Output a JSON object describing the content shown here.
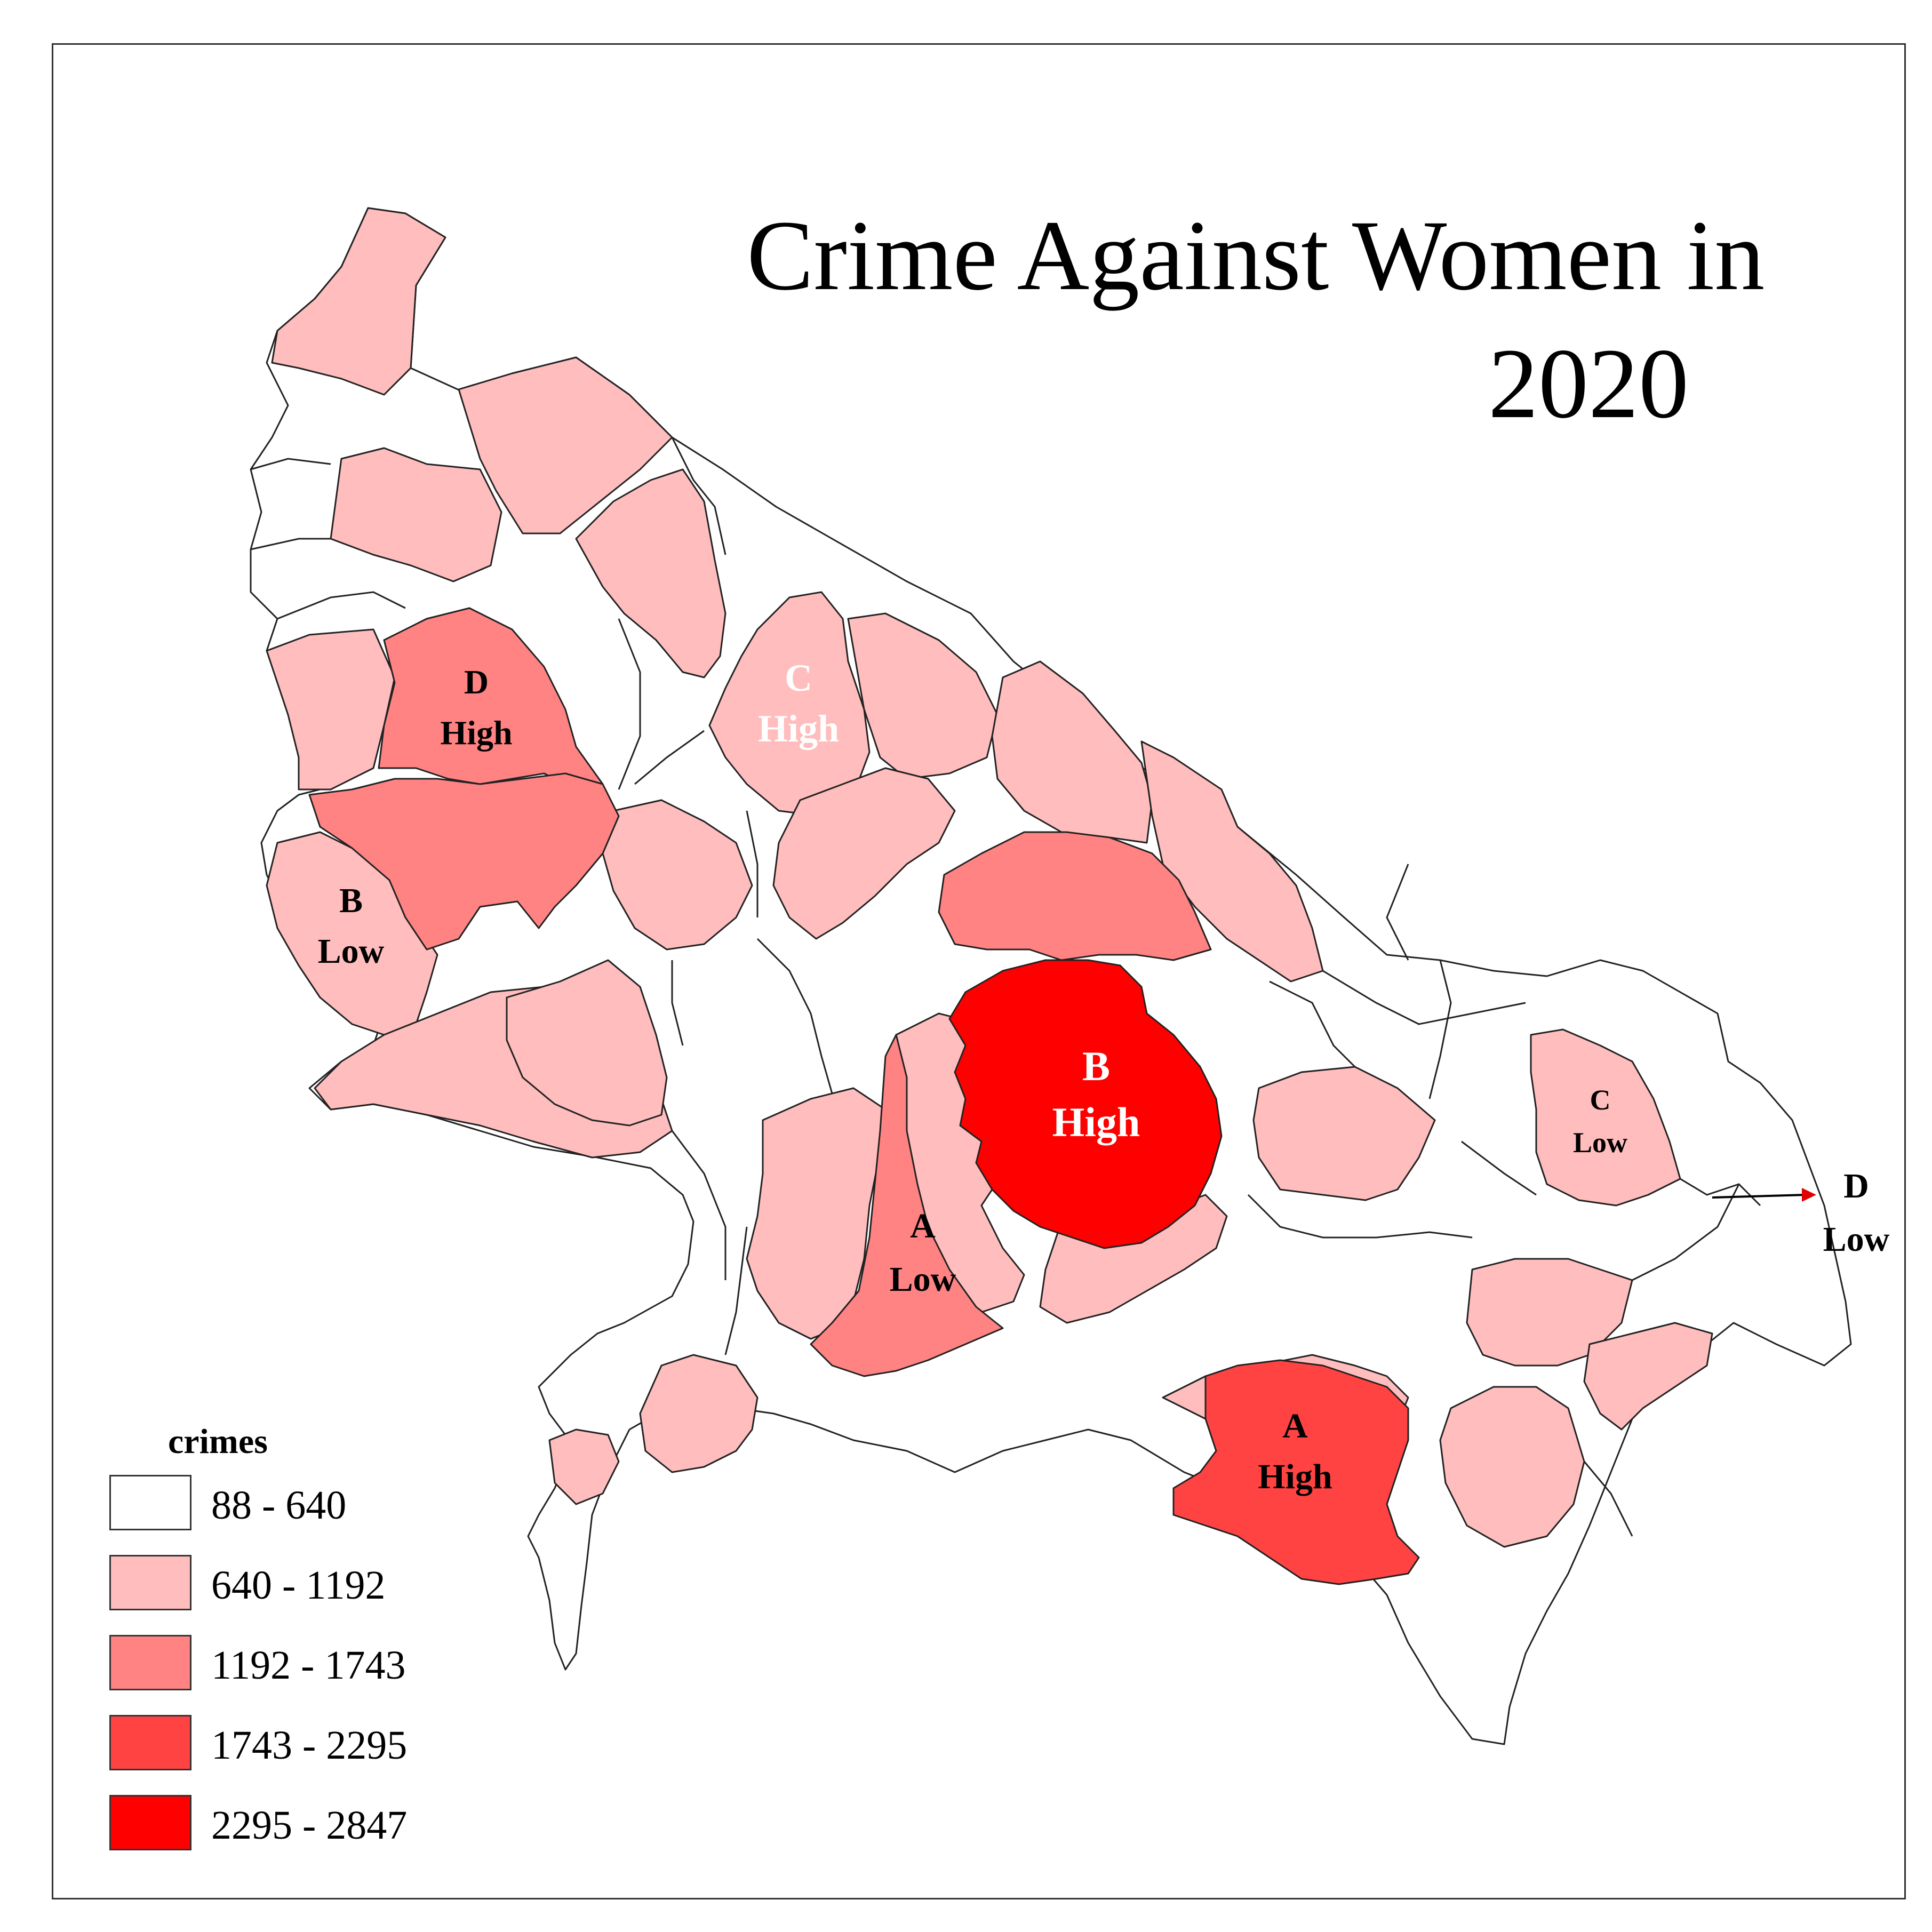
{
  "title_line1": "Crime Against Women in",
  "title_line2": "2020",
  "legend": {
    "title": "crimes",
    "classes": [
      {
        "label": "88 - 640",
        "color": "#ffffff"
      },
      {
        "label": "640 - 1192",
        "color": "#ffbdbd"
      },
      {
        "label": "1192 - 1743",
        "color": "#ff8383"
      },
      {
        "label": "1743 - 2295",
        "color": "#ff4343"
      },
      {
        "label": "2295 - 2847",
        "color": "#ff0000"
      }
    ]
  },
  "district_labels": {
    "d_high": [
      "D",
      "High"
    ],
    "c_high": [
      "C",
      "High"
    ],
    "b_low": [
      "B",
      "Low"
    ],
    "b_high": [
      "B",
      "High"
    ],
    "a_low": [
      "A",
      "Low"
    ],
    "c_low": [
      "C",
      "Low"
    ],
    "d_low": [
      "D",
      "Low"
    ],
    "a_high": [
      "A",
      "High"
    ]
  },
  "colors": {
    "outline": "#222222",
    "arrow": "#e00000",
    "light_label": "#ffffff",
    "dark_label": "#000000"
  }
}
